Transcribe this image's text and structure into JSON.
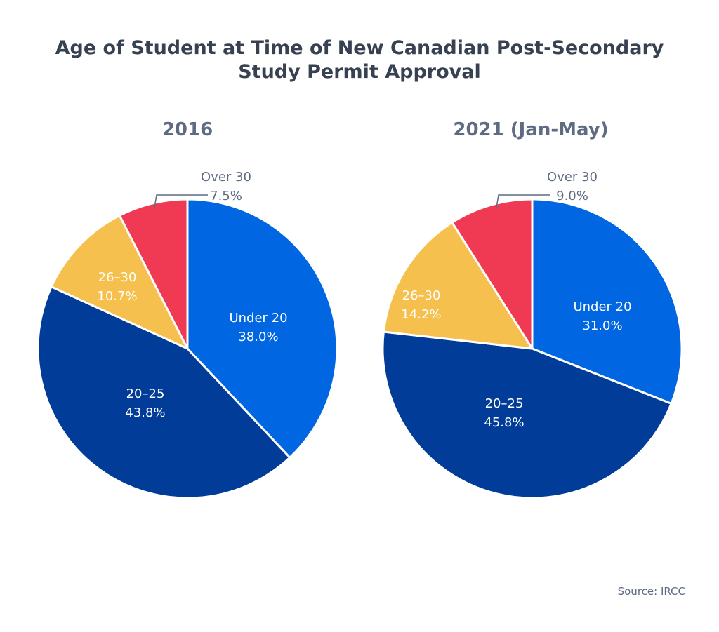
{
  "title_line1": "Age of Student at Time of New Canadian Post-Secondary",
  "title_line2": "Study Permit Approval",
  "source": "Source: IRCC",
  "chart_data": [
    {
      "type": "pie",
      "title": "2016",
      "categories": [
        "Under 20",
        "20–25",
        "26–30",
        "Over 30"
      ],
      "values": [
        38.0,
        43.8,
        10.7,
        7.5
      ],
      "labels": [
        "38.0%",
        "43.8%",
        "10.7%",
        "7.5%"
      ],
      "colors": [
        "#0066e2",
        "#003c98",
        "#f5c04e",
        "#f03a53"
      ]
    },
    {
      "type": "pie",
      "title": "2021 (Jan-May)",
      "categories": [
        "Under 20",
        "20–25",
        "26–30",
        "Over 30"
      ],
      "values": [
        31.0,
        45.8,
        14.2,
        9.0
      ],
      "labels": [
        "31.0%",
        "45.8%",
        "14.2%",
        "9.0%"
      ],
      "colors": [
        "#0066e2",
        "#003c98",
        "#f5c04e",
        "#f03a53"
      ]
    }
  ]
}
